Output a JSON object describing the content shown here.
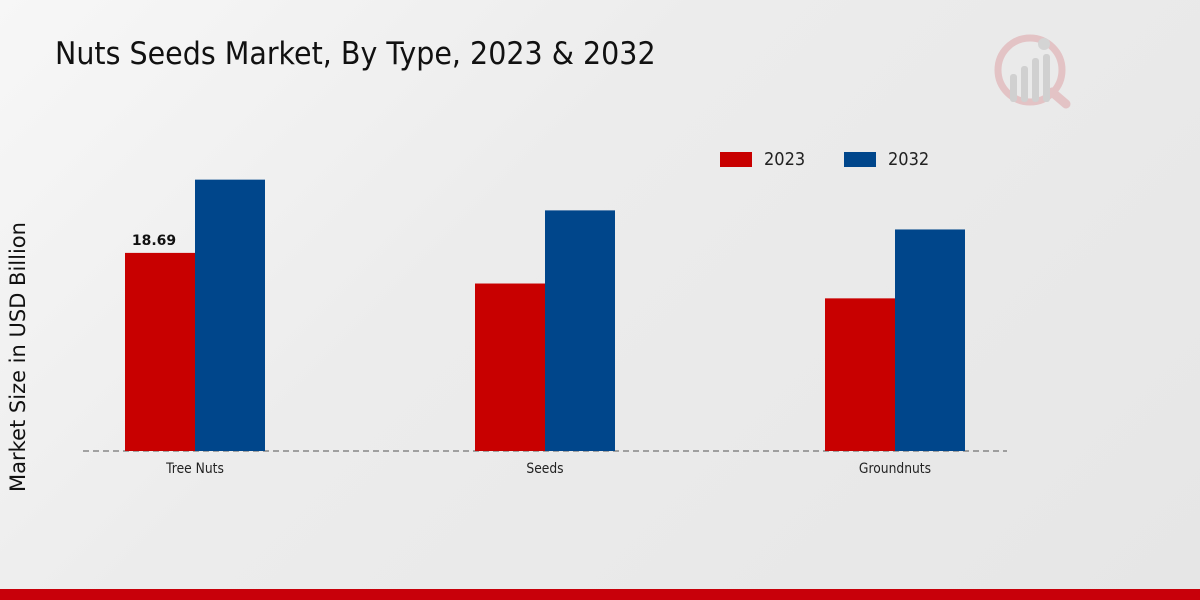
{
  "title": "Nuts Seeds Market, By Type, 2023 & 2032",
  "colors": {
    "series_2023": "#c80000",
    "series_2032": "#00468b",
    "footer_bar": "#c8000a"
  },
  "chart_data": {
    "type": "bar",
    "title": "Nuts Seeds Market, By Type, 2023 & 2032",
    "xlabel": "",
    "ylabel": "Market Size in USD Billion",
    "categories": [
      "Tree Nuts",
      "Seeds",
      "Groundnuts"
    ],
    "series": [
      {
        "name": "2023",
        "values": [
          18.69,
          15.8,
          14.4
        ]
      },
      {
        "name": "2032",
        "values": [
          25.6,
          22.7,
          20.9
        ]
      }
    ],
    "data_labels": [
      {
        "series": "2023",
        "category": "Tree Nuts",
        "text": "18.69"
      }
    ],
    "ylim": [
      0,
      35
    ],
    "legend": "top-right",
    "grid": false,
    "baseline": "dashed"
  }
}
